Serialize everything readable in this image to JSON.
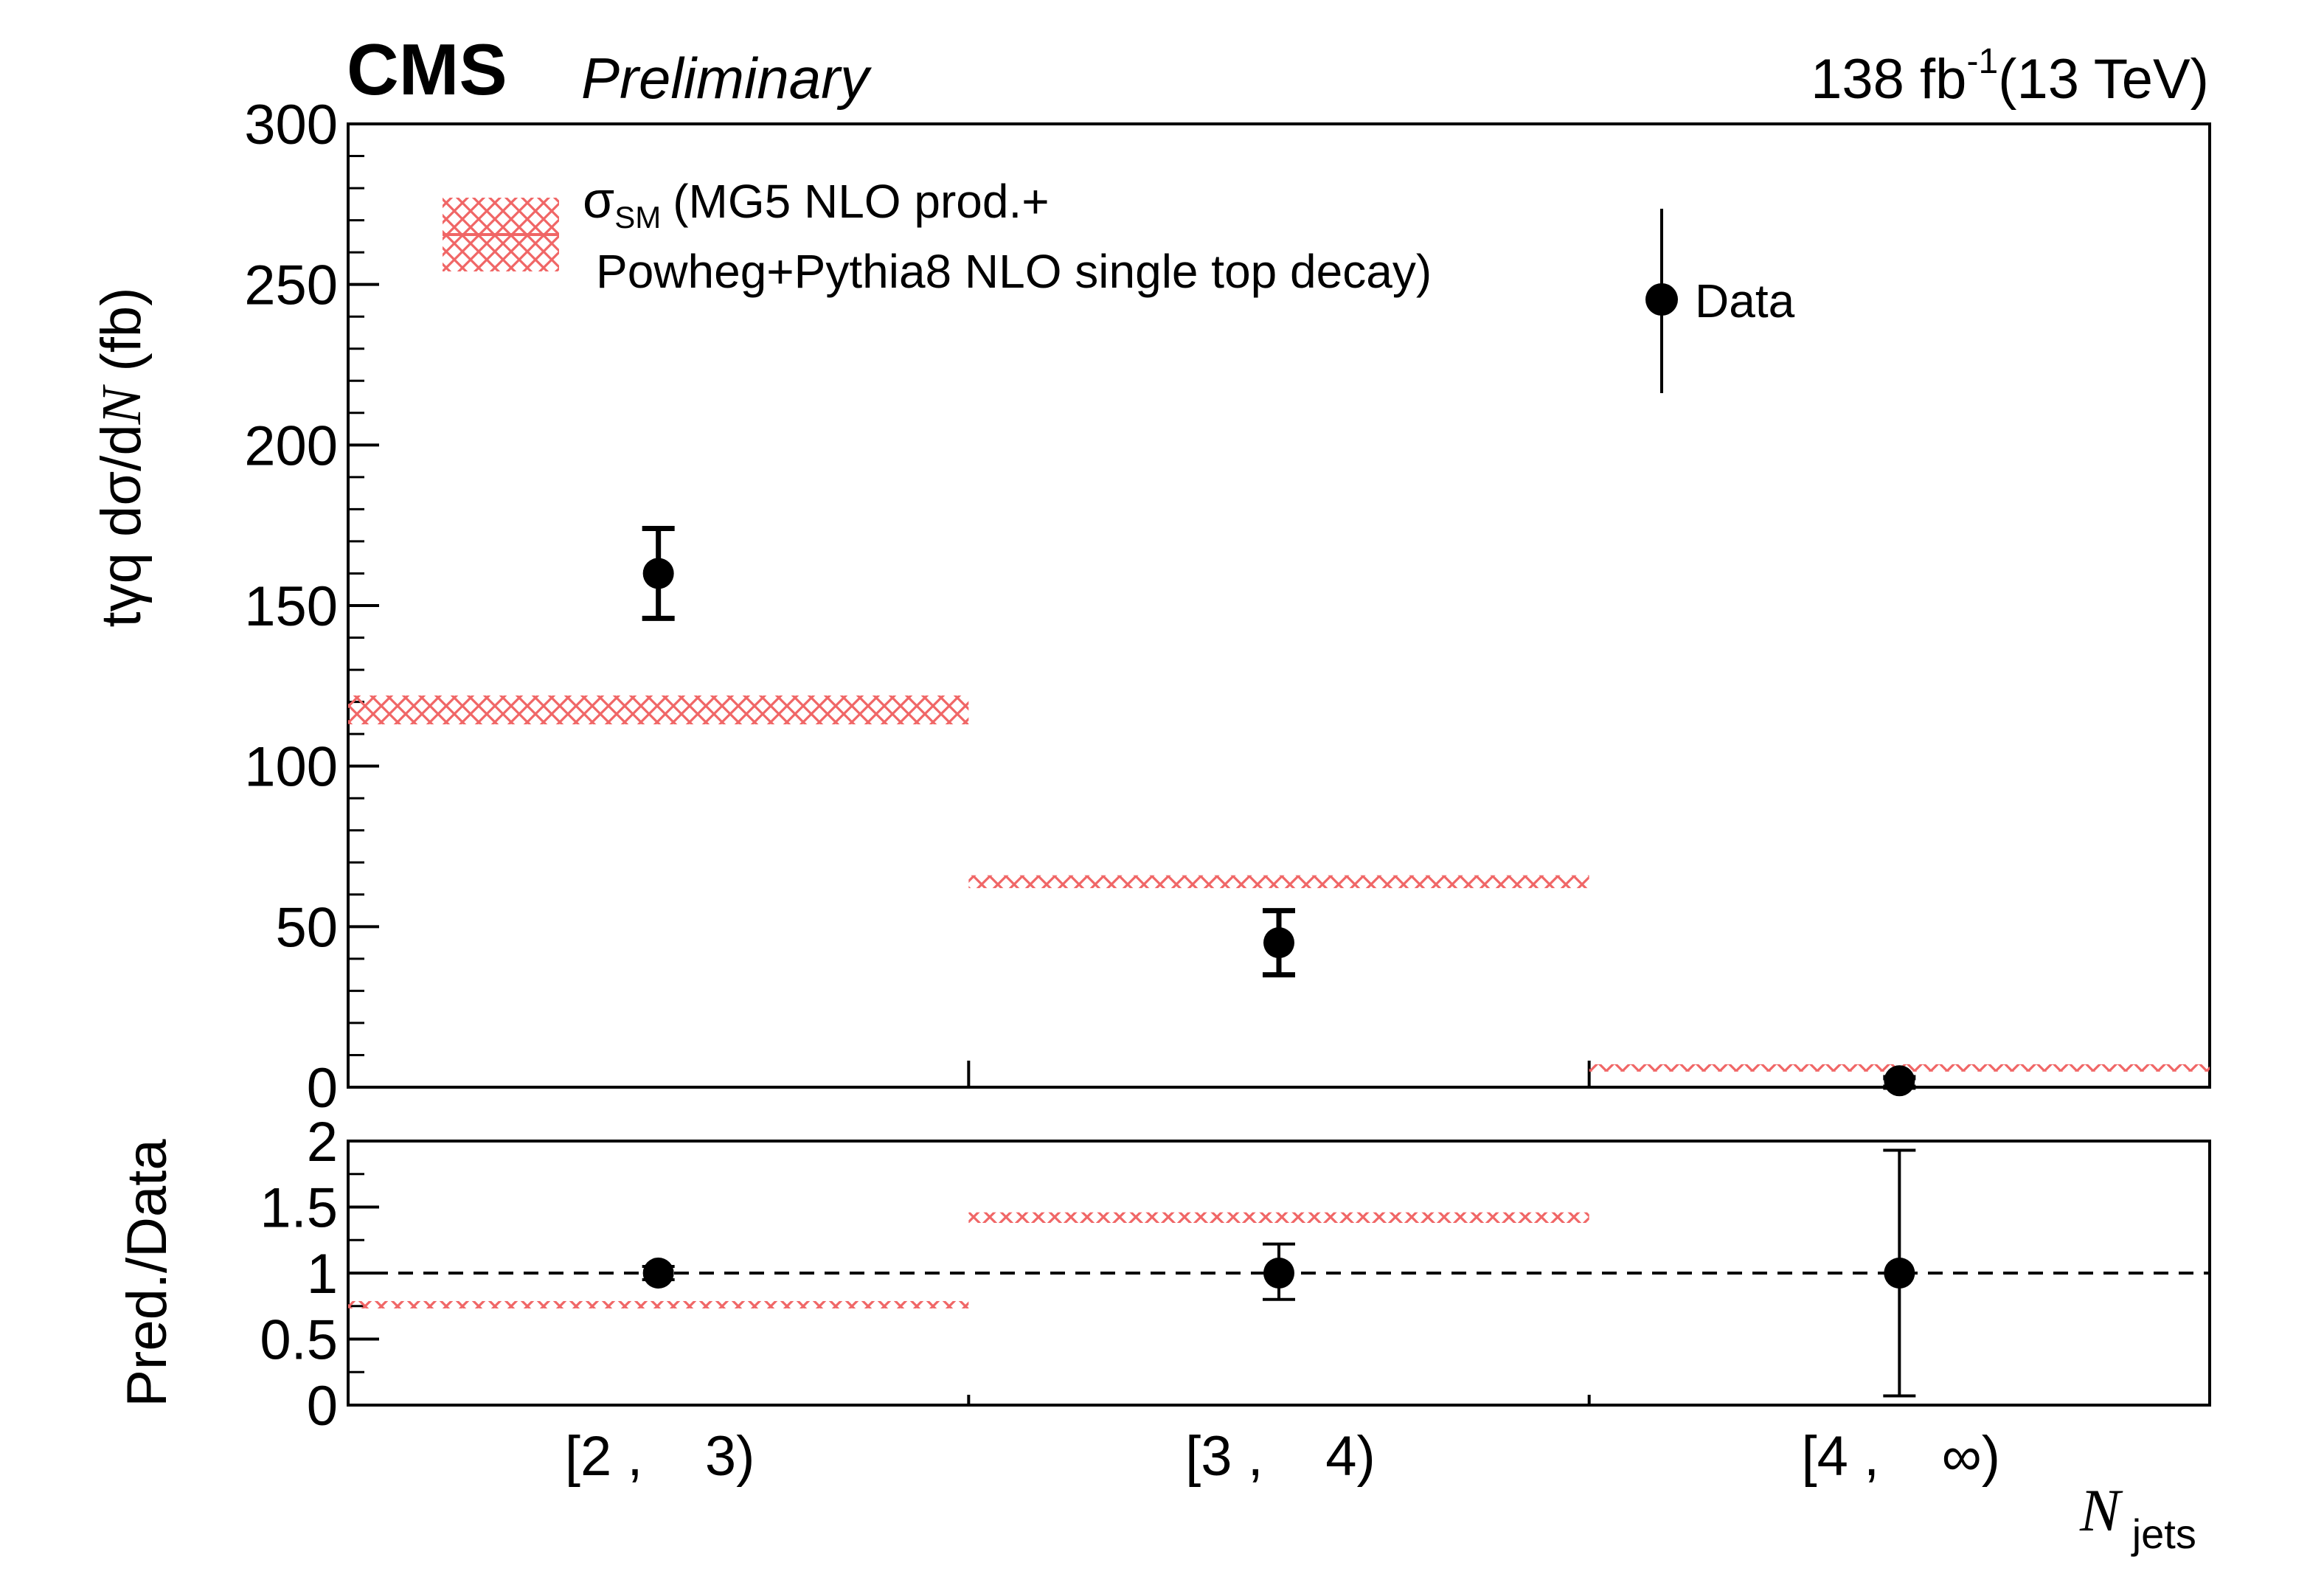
{
  "header": {
    "experiment": "CMS",
    "status": "Preliminary",
    "lumi_value": "138 fb",
    "lumi_exp": "-1",
    "energy": "(13 TeV)"
  },
  "legend": {
    "prediction_label_line1": "(MG5 NLO prod.+",
    "prediction_sigma": "σ",
    "prediction_sub": "SM",
    "prediction_label_line2": "Powheg+Pythia8 NLO single top decay)",
    "data_label": "Data"
  },
  "colors": {
    "prediction": "#f06666",
    "data": "#000000",
    "frame": "#000000"
  },
  "chart_data": [
    {
      "type": "scatter",
      "panel": "main",
      "ylabel": "tγq  dσ/dN (fb)",
      "ylabel_parts": {
        "prefix": "tγq  dσ/d",
        "var": "N",
        "suffix": " (fb)"
      },
      "ylim": [
        0,
        300
      ],
      "yticks": [
        "0",
        "50",
        "100",
        "150",
        "200",
        "250",
        "300"
      ],
      "categories": [
        "[2 ,    3)",
        "[3 ,    4)",
        "[4 ,    ∞)"
      ],
      "series": [
        {
          "name": "Data",
          "style": "markers",
          "values": [
            160,
            45,
            2
          ],
          "err_low": [
            146,
            35,
            0
          ],
          "err_high": [
            174,
            55,
            3
          ]
        },
        {
          "name": "σSM (MG5 NLO prod.+ Powheg+Pythia8 NLO single top decay)",
          "style": "hatched-band",
          "values": [
            117,
            64,
            5
          ],
          "band_low": [
            113,
            62,
            4
          ],
          "band_high": [
            122,
            66,
            6
          ]
        }
      ]
    },
    {
      "type": "scatter",
      "panel": "ratio",
      "ylabel": "Pred./Data",
      "ylim": [
        0,
        2
      ],
      "yticks": [
        "0",
        "0.5",
        "1",
        "1.5",
        "2"
      ],
      "reference_line": 1,
      "xlabel_var": "N",
      "xlabel_sub": "jets",
      "categories": [
        "[2 ,    3)",
        "[3 ,    4)",
        "[4 ,    ∞)"
      ],
      "series": [
        {
          "name": "Data",
          "style": "markers",
          "values": [
            1,
            1,
            1
          ],
          "err_low": [
            0.95,
            0.8,
            0.07
          ],
          "err_high": [
            1.05,
            1.22,
            1.93
          ]
        },
        {
          "name": "Prediction",
          "style": "hatched-band",
          "values": [
            0.73,
            1.42,
            0
          ],
          "band_low": [
            0.72,
            1.38,
            0
          ],
          "band_high": [
            0.76,
            1.46,
            0
          ]
        }
      ]
    }
  ]
}
